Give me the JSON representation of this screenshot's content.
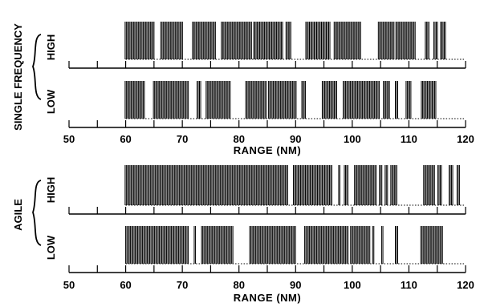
{
  "chart_data": {
    "type": "event-raster",
    "x_axis": {
      "min": 50,
      "max": 120,
      "ticks": [
        50,
        60,
        70,
        80,
        90,
        100,
        110,
        120
      ],
      "minor_ticks": [
        55,
        65,
        75,
        85,
        95,
        105,
        115
      ],
      "title": "RANGE (NM)"
    },
    "panels": [
      {
        "group_label": "SINGLE FREQUENCY",
        "tracks": [
          {
            "label": "HIGH",
            "segments": [
              [
                59.9,
                65.1
              ],
              [
                66.2,
                70.2
              ],
              [
                71.8,
                75.9
              ],
              [
                76.9,
                82.3
              ],
              [
                82.6,
                87.8
              ],
              [
                88.3,
                89.3
              ],
              [
                91.8,
                96.2
              ],
              [
                96.8,
                101.5
              ],
              [
                104.6,
                107.5
              ],
              [
                107.7,
                111.1
              ],
              [
                112.9,
                113.7
              ],
              [
                114.4,
                115.2
              ],
              [
                115.6,
                116.6
              ]
            ]
          },
          {
            "label": "LOW",
            "segments": [
              [
                59.9,
                63.5
              ],
              [
                64.9,
                71.2
              ],
              [
                72.6,
                73.3
              ],
              [
                74.2,
                78.6
              ],
              [
                81.2,
                85.0
              ],
              [
                85.2,
                90.2
              ],
              [
                91.1,
                91.9
              ],
              [
                94.7,
                97.4
              ],
              [
                98.4,
                104.8
              ],
              [
                105.5,
                106.6
              ],
              [
                107.6,
                108.2
              ],
              [
                109.5,
                110.5
              ],
              [
                112.2,
                114.8
              ]
            ]
          }
        ]
      },
      {
        "group_label": "AGILE",
        "tracks": [
          {
            "label": "HIGH",
            "segments": [
              [
                59.9,
                88.7
              ],
              [
                89.6,
                96.6
              ],
              [
                97.6,
                97.9
              ],
              [
                98.6,
                99.4
              ],
              [
                100.4,
                104.4
              ],
              [
                104.8,
                105.3
              ],
              [
                105.8,
                106.4
              ],
              [
                106.8,
                107.9
              ],
              [
                112.6,
                114.7
              ],
              [
                115.1,
                115.9
              ],
              [
                117.1,
                117.9
              ],
              [
                118.5,
                119.1
              ]
            ]
          },
          {
            "label": "LOW",
            "segments": [
              [
                60.0,
                71.1
              ],
              [
                72.1,
                72.4
              ],
              [
                73.4,
                79.0
              ],
              [
                81.9,
                90.0
              ],
              [
                91.6,
                99.4
              ],
              [
                99.7,
                103.2
              ],
              [
                103.6,
                103.9
              ],
              [
                105.2,
                105.6
              ],
              [
                107.6,
                108.2
              ],
              [
                112.1,
                116.1
              ]
            ]
          }
        ]
      }
    ]
  }
}
